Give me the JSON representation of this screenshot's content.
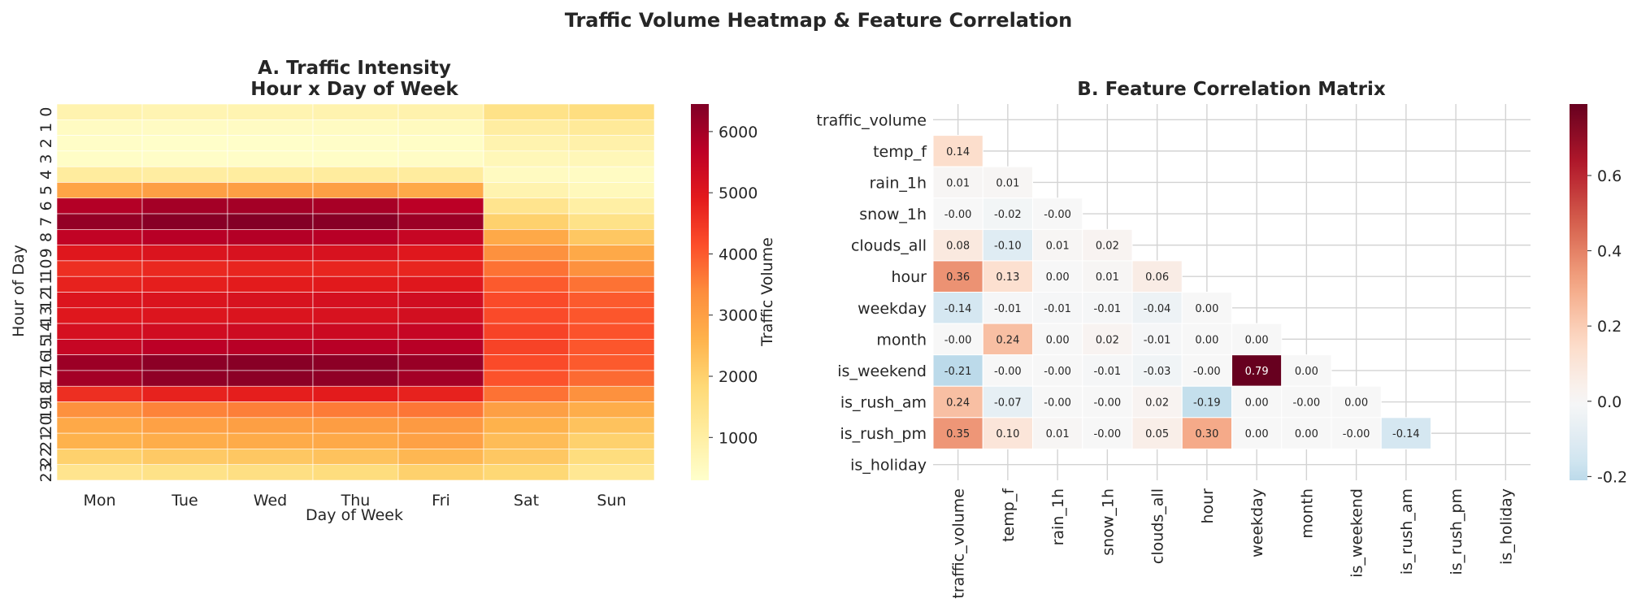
{
  "figure": {
    "title": "Traffic Volume Heatmap & Feature Correlation"
  },
  "chart_data": [
    {
      "type": "heatmap",
      "title_lines": [
        "A. Traffic Intensity",
        "Hour x Day of Week"
      ],
      "xlabel": "Day of Week",
      "ylabel": "Hour of Day",
      "colorbar_label": "Traffic Volume",
      "colormap": "YlOrRd",
      "vmin": 300,
      "vmax": 6450,
      "colorbar_ticks": [
        1000,
        2000,
        3000,
        4000,
        5000,
        6000
      ],
      "x_categories": [
        "Mon",
        "Tue",
        "Wed",
        "Thu",
        "Fri",
        "Sat",
        "Sun"
      ],
      "y_categories": [
        "0",
        "1",
        "2",
        "3",
        "4",
        "5",
        "6",
        "7",
        "8",
        "9",
        "10",
        "11",
        "12",
        "13",
        "14",
        "15",
        "16",
        "17",
        "18",
        "19",
        "20",
        "21",
        "22",
        "23"
      ],
      "values": [
        [
          800,
          750,
          770,
          800,
          850,
          1500,
          1650
        ],
        [
          480,
          450,
          460,
          480,
          520,
          1050,
          1200
        ],
        [
          380,
          350,
          360,
          370,
          400,
          800,
          900
        ],
        [
          400,
          380,
          390,
          400,
          420,
          650,
          650
        ],
        [
          1100,
          1050,
          1080,
          1100,
          1100,
          500,
          450
        ],
        [
          2900,
          3000,
          3000,
          3000,
          2800,
          800,
          600
        ],
        [
          5800,
          6000,
          6000,
          5950,
          5700,
          1400,
          1000
        ],
        [
          6200,
          6350,
          6400,
          6350,
          6100,
          2000,
          1500
        ],
        [
          5600,
          5750,
          5800,
          5750,
          5500,
          2800,
          2200
        ],
        [
          5000,
          5100,
          5150,
          5150,
          5000,
          3300,
          2800
        ],
        [
          4600,
          4700,
          4750,
          4750,
          4750,
          3700,
          3300
        ],
        [
          4800,
          4850,
          4900,
          4950,
          5000,
          4000,
          3700
        ],
        [
          5050,
          5100,
          5150,
          5200,
          5300,
          4200,
          4000
        ],
        [
          5000,
          5050,
          5100,
          5150,
          5250,
          4200,
          4050
        ],
        [
          5200,
          5300,
          5350,
          5400,
          5500,
          4300,
          4100
        ],
        [
          5500,
          5700,
          5750,
          5750,
          5750,
          4300,
          4050
        ],
        [
          6100,
          6300,
          6350,
          6300,
          6150,
          4200,
          4000
        ],
        [
          6000,
          6250,
          6300,
          6250,
          6000,
          4100,
          3800
        ],
        [
          4600,
          4800,
          4850,
          4900,
          4800,
          3700,
          3300
        ],
        [
          3300,
          3500,
          3550,
          3600,
          3650,
          3000,
          2700
        ],
        [
          2800,
          2950,
          3000,
          3050,
          3100,
          2600,
          2300
        ],
        [
          2600,
          2700,
          2750,
          2800,
          2950,
          2400,
          2000
        ],
        [
          2000,
          2150,
          2200,
          2300,
          2500,
          2200,
          1700
        ],
        [
          1400,
          1500,
          1600,
          1700,
          2000,
          1850,
          1300
        ]
      ]
    },
    {
      "type": "heatmap",
      "title": "B. Feature Correlation Matrix",
      "colormap": "RdBu_r",
      "vmin": -0.21,
      "vmax": 0.79,
      "center": 0,
      "colorbar_ticks": [
        "-0.2",
        "0.0",
        "0.2",
        "0.4",
        "0.6"
      ],
      "colorbar_tick_values": [
        -0.2,
        0.0,
        0.2,
        0.4,
        0.6
      ],
      "x_categories": [
        "traffic_volume",
        "temp_f",
        "rain_1h",
        "snow_1h",
        "clouds_all",
        "hour",
        "weekday",
        "month",
        "is_weekend",
        "is_rush_am",
        "is_rush_pm",
        "is_holiday"
      ],
      "y_categories": [
        "traffic_volume",
        "temp_f",
        "rain_1h",
        "snow_1h",
        "clouds_all",
        "hour",
        "weekday",
        "month",
        "is_weekend",
        "is_rush_am",
        "is_rush_pm",
        "is_holiday"
      ],
      "lower_triangle": [
        [],
        [
          "0.14"
        ],
        [
          "0.01",
          "0.01"
        ],
        [
          "-0.00",
          "-0.02",
          "-0.00"
        ],
        [
          "0.08",
          "-0.10",
          "0.01",
          "0.02"
        ],
        [
          "0.36",
          "0.13",
          "0.00",
          "0.01",
          "0.06"
        ],
        [
          "-0.14",
          "-0.01",
          "-0.01",
          "-0.01",
          "-0.04",
          "0.00"
        ],
        [
          "-0.00",
          "0.24",
          "0.00",
          "0.02",
          "-0.01",
          "0.00",
          "0.00"
        ],
        [
          "-0.21",
          "-0.00",
          "-0.00",
          "-0.01",
          "-0.03",
          "-0.00",
          "0.79",
          "0.00"
        ],
        [
          "0.24",
          "-0.07",
          "-0.00",
          "-0.00",
          "0.02",
          "-0.19",
          "0.00",
          "-0.00",
          "0.00"
        ],
        [
          "0.35",
          "0.10",
          "0.01",
          "-0.00",
          "0.05",
          "0.30",
          "0.00",
          "0.00",
          "-0.00",
          "-0.14"
        ],
        []
      ]
    }
  ]
}
